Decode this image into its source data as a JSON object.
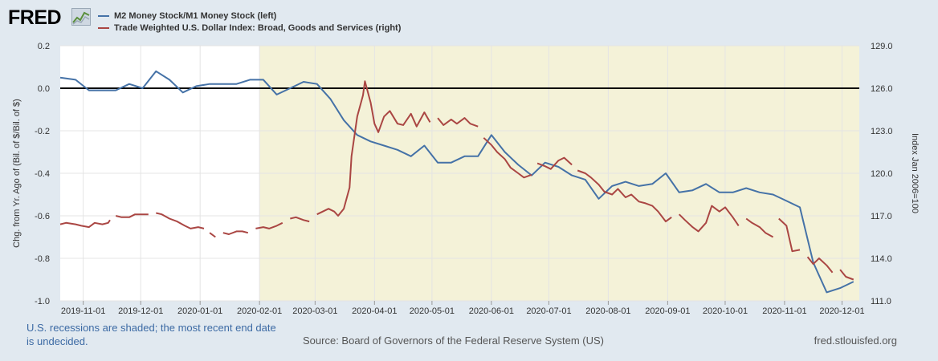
{
  "header": {
    "logo_text": "FRED",
    "logo_icon": "line-chart-icon"
  },
  "legend": [
    {
      "label": "M2 Money Stock/M1 Money Stock (left)",
      "color": "#4572a7"
    },
    {
      "label": "Trade Weighted U.S. Dollar Index: Broad, Goods and Services (right)",
      "color": "#aa4643"
    }
  ],
  "footer": {
    "note": "U.S. recessions are shaded; the most recent end date is undecided.",
    "source": "Source: Board of Governors of the Federal Reserve System (US)",
    "site": "fred.stlouisfed.org"
  },
  "chart_data": {
    "type": "line",
    "x_axis": {
      "ticks": [
        "2019-11-01",
        "2019-12-01",
        "2020-01-01",
        "2020-02-01",
        "2020-03-01",
        "2020-04-01",
        "2020-05-01",
        "2020-06-01",
        "2020-07-01",
        "2020-08-01",
        "2020-09-01",
        "2020-10-01",
        "2020-11-01",
        "2020-12-01"
      ],
      "range": [
        "2019-10-20",
        "2020-12-10"
      ]
    },
    "left_axis": {
      "label": "Chg. from Yr. Ago of (Bil. of $/Bil. of $)",
      "range": [
        -1.0,
        0.2
      ],
      "ticks": [
        "-1.0",
        "-0.8",
        "-0.6",
        "-0.4",
        "-0.2",
        "0.0",
        "0.2"
      ]
    },
    "right_axis": {
      "label": "Index Jan 2006=100",
      "range": [
        111.0,
        129.0
      ],
      "ticks": [
        "111.0",
        "114.0",
        "117.0",
        "120.0",
        "123.0",
        "126.0",
        "129.0"
      ]
    },
    "recession_shading": {
      "start": "2020-02-01",
      "end": "2020-12-10",
      "color": "#f4f2d8"
    },
    "zero_line": 0.0,
    "series": [
      {
        "name": "M2 Money Stock/M1 Money Stock (left)",
        "axis": "left",
        "color": "#4572a7",
        "points": [
          [
            "2019-10-20",
            0.05
          ],
          [
            "2019-10-28",
            0.04
          ],
          [
            "2019-11-04",
            -0.01
          ],
          [
            "2019-11-11",
            -0.01
          ],
          [
            "2019-11-18",
            -0.01
          ],
          [
            "2019-11-25",
            0.02
          ],
          [
            "2019-12-02",
            0.0
          ],
          [
            "2019-12-09",
            0.08
          ],
          [
            "2019-12-16",
            0.04
          ],
          [
            "2019-12-23",
            -0.02
          ],
          [
            "2019-12-30",
            0.01
          ],
          [
            "2020-01-06",
            0.02
          ],
          [
            "2020-01-13",
            0.02
          ],
          [
            "2020-01-20",
            0.02
          ],
          [
            "2020-01-27",
            0.04
          ],
          [
            "2020-02-03",
            0.04
          ],
          [
            "2020-02-10",
            -0.03
          ],
          [
            "2020-02-17",
            0.0
          ],
          [
            "2020-02-24",
            0.03
          ],
          [
            "2020-03-02",
            0.02
          ],
          [
            "2020-03-09",
            -0.05
          ],
          [
            "2020-03-16",
            -0.15
          ],
          [
            "2020-03-23",
            -0.22
          ],
          [
            "2020-03-30",
            -0.25
          ],
          [
            "2020-04-06",
            -0.27
          ],
          [
            "2020-04-13",
            -0.29
          ],
          [
            "2020-04-20",
            -0.32
          ],
          [
            "2020-04-27",
            -0.27
          ],
          [
            "2020-05-04",
            -0.35
          ],
          [
            "2020-05-11",
            -0.35
          ],
          [
            "2020-05-18",
            -0.32
          ],
          [
            "2020-05-25",
            -0.32
          ],
          [
            "2020-06-01",
            -0.22
          ],
          [
            "2020-06-08",
            -0.3
          ],
          [
            "2020-06-15",
            -0.36
          ],
          [
            "2020-06-22",
            -0.41
          ],
          [
            "2020-06-29",
            -0.35
          ],
          [
            "2020-07-06",
            -0.37
          ],
          [
            "2020-07-13",
            -0.41
          ],
          [
            "2020-07-20",
            -0.43
          ],
          [
            "2020-07-27",
            -0.52
          ],
          [
            "2020-08-03",
            -0.46
          ],
          [
            "2020-08-10",
            -0.44
          ],
          [
            "2020-08-17",
            -0.46
          ],
          [
            "2020-08-24",
            -0.45
          ],
          [
            "2020-08-31",
            -0.4
          ],
          [
            "2020-09-07",
            -0.49
          ],
          [
            "2020-09-14",
            -0.48
          ],
          [
            "2020-09-21",
            -0.45
          ],
          [
            "2020-09-28",
            -0.49
          ],
          [
            "2020-10-05",
            -0.49
          ],
          [
            "2020-10-12",
            -0.47
          ],
          [
            "2020-10-19",
            -0.49
          ],
          [
            "2020-10-26",
            -0.5
          ],
          [
            "2020-11-02",
            -0.53
          ],
          [
            "2020-11-09",
            -0.56
          ],
          [
            "2020-11-16",
            -0.82
          ],
          [
            "2020-11-23",
            -0.96
          ],
          [
            "2020-11-30",
            -0.94
          ],
          [
            "2020-12-07",
            -0.91
          ]
        ]
      },
      {
        "name": "Trade Weighted U.S. Dollar Index: Broad, Goods and Services (right)",
        "axis": "right",
        "color": "#aa4643",
        "points": [
          [
            "2019-10-20",
            116.4
          ],
          [
            "2019-10-23",
            116.5
          ],
          [
            "2019-10-28",
            116.4
          ],
          [
            "2019-10-31",
            116.3
          ],
          [
            "2019-11-04",
            116.2
          ],
          [
            "2019-11-07",
            116.5
          ],
          [
            "2019-11-11",
            116.4
          ],
          [
            "2019-11-14",
            116.5
          ],
          [
            "2019-11-15",
            116.7
          ],
          null,
          [
            "2019-11-18",
            117.0
          ],
          [
            "2019-11-21",
            116.9
          ],
          [
            "2019-11-25",
            116.9
          ],
          [
            "2019-11-28",
            117.1
          ],
          [
            "2019-12-02",
            117.1
          ],
          [
            "2019-12-05",
            117.1
          ],
          null,
          [
            "2019-12-09",
            117.2
          ],
          [
            "2019-12-12",
            117.1
          ],
          [
            "2019-12-16",
            116.8
          ],
          [
            "2019-12-20",
            116.6
          ],
          [
            "2019-12-24",
            116.3
          ],
          [
            "2019-12-27",
            116.1
          ],
          [
            "2019-12-31",
            116.2
          ],
          [
            "2020-01-03",
            116.1
          ],
          null,
          [
            "2020-01-06",
            115.8
          ],
          [
            "2020-01-09",
            115.5
          ],
          null,
          [
            "2020-01-13",
            115.8
          ],
          [
            "2020-01-16",
            115.7
          ],
          [
            "2020-01-20",
            115.9
          ],
          [
            "2020-01-23",
            115.9
          ],
          [
            "2020-01-26",
            115.8
          ],
          null,
          [
            "2020-01-30",
            116.1
          ],
          [
            "2020-02-03",
            116.2
          ],
          [
            "2020-02-06",
            116.1
          ],
          [
            "2020-02-10",
            116.3
          ],
          [
            "2020-02-13",
            116.5
          ],
          null,
          [
            "2020-02-17",
            116.8
          ],
          [
            "2020-02-20",
            116.9
          ],
          [
            "2020-02-24",
            116.7
          ],
          [
            "2020-02-27",
            116.6
          ],
          null,
          [
            "2020-03-02",
            117.1
          ],
          [
            "2020-03-05",
            117.3
          ],
          [
            "2020-03-08",
            117.5
          ],
          [
            "2020-03-11",
            117.3
          ],
          [
            "2020-03-13",
            117.0
          ],
          [
            "2020-03-16",
            117.5
          ],
          [
            "2020-03-19",
            119.0
          ],
          [
            "2020-03-20",
            121.2
          ],
          [
            "2020-03-23",
            124.0
          ],
          [
            "2020-03-26",
            125.5
          ],
          [
            "2020-03-27",
            126.5
          ],
          [
            "2020-03-30",
            125.0
          ],
          [
            "2020-04-01",
            123.5
          ],
          [
            "2020-04-03",
            122.9
          ],
          [
            "2020-04-06",
            124.0
          ],
          [
            "2020-04-09",
            124.4
          ],
          [
            "2020-04-13",
            123.5
          ],
          [
            "2020-04-16",
            123.4
          ],
          [
            "2020-04-20",
            124.2
          ],
          [
            "2020-04-23",
            123.3
          ],
          [
            "2020-04-27",
            124.3
          ],
          [
            "2020-04-30",
            123.6
          ],
          null,
          [
            "2020-05-04",
            123.9
          ],
          [
            "2020-05-07",
            123.4
          ],
          [
            "2020-05-11",
            123.8
          ],
          [
            "2020-05-14",
            123.5
          ],
          [
            "2020-05-18",
            123.9
          ],
          [
            "2020-05-21",
            123.5
          ],
          [
            "2020-05-25",
            123.3
          ],
          null,
          [
            "2020-05-28",
            122.5
          ],
          [
            "2020-06-01",
            122.0
          ],
          [
            "2020-06-04",
            121.5
          ],
          [
            "2020-06-08",
            121.0
          ],
          [
            "2020-06-11",
            120.4
          ],
          [
            "2020-06-15",
            120.0
          ],
          [
            "2020-06-18",
            119.7
          ],
          [
            "2020-06-22",
            119.9
          ],
          null,
          [
            "2020-06-25",
            120.7
          ],
          [
            "2020-06-29",
            120.5
          ],
          [
            "2020-07-02",
            120.3
          ],
          [
            "2020-07-06",
            120.9
          ],
          [
            "2020-07-09",
            121.1
          ],
          [
            "2020-07-13",
            120.6
          ],
          null,
          [
            "2020-07-16",
            120.2
          ],
          [
            "2020-07-20",
            120.0
          ],
          [
            "2020-07-23",
            119.7
          ],
          [
            "2020-07-27",
            119.2
          ],
          [
            "2020-07-30",
            118.7
          ],
          [
            "2020-08-03",
            118.5
          ],
          [
            "2020-08-06",
            118.9
          ],
          [
            "2020-08-10",
            118.3
          ],
          [
            "2020-08-13",
            118.5
          ],
          [
            "2020-08-17",
            118.0
          ],
          [
            "2020-08-20",
            117.9
          ],
          [
            "2020-08-24",
            117.7
          ],
          [
            "2020-08-27",
            117.3
          ],
          [
            "2020-08-31",
            116.6
          ],
          [
            "2020-09-03",
            116.9
          ],
          null,
          [
            "2020-09-07",
            117.1
          ],
          [
            "2020-09-10",
            116.7
          ],
          [
            "2020-09-14",
            116.2
          ],
          [
            "2020-09-17",
            115.9
          ],
          [
            "2020-09-21",
            116.5
          ],
          [
            "2020-09-24",
            117.7
          ],
          [
            "2020-09-28",
            117.3
          ],
          [
            "2020-10-01",
            117.6
          ],
          [
            "2020-10-05",
            116.9
          ],
          [
            "2020-10-08",
            116.3
          ],
          null,
          [
            "2020-10-12",
            116.8
          ],
          [
            "2020-10-15",
            116.5
          ],
          [
            "2020-10-19",
            116.2
          ],
          [
            "2020-10-22",
            115.8
          ],
          [
            "2020-10-26",
            115.5
          ],
          null,
          [
            "2020-10-29",
            116.8
          ],
          [
            "2020-11-02",
            116.3
          ],
          [
            "2020-11-05",
            114.5
          ],
          [
            "2020-11-09",
            114.6
          ],
          null,
          [
            "2020-11-13",
            114.1
          ],
          [
            "2020-11-16",
            113.6
          ],
          [
            "2020-11-19",
            114.0
          ],
          [
            "2020-11-23",
            113.5
          ],
          [
            "2020-11-26",
            113.0
          ],
          null,
          [
            "2020-11-30",
            113.2
          ],
          [
            "2020-12-03",
            112.7
          ],
          [
            "2020-12-07",
            112.5
          ]
        ]
      }
    ]
  }
}
